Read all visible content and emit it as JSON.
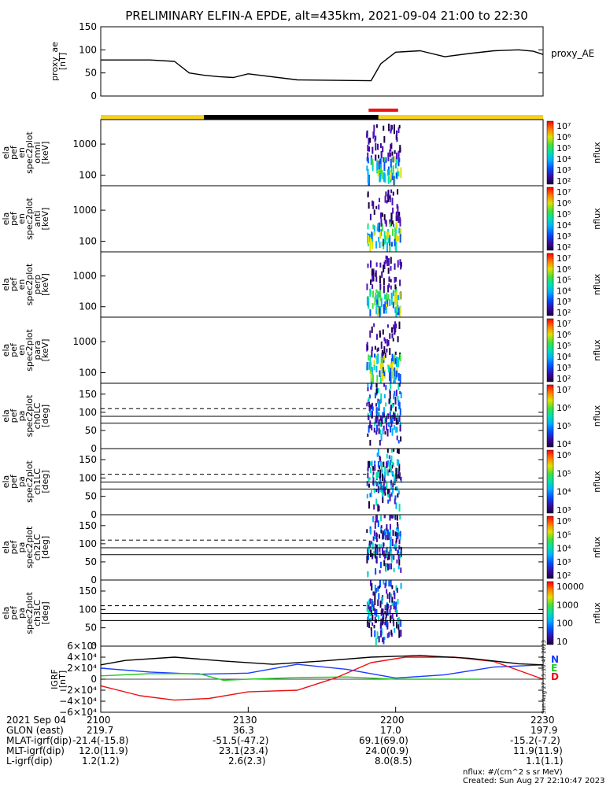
{
  "title": "PRELIMINARY ELFIN-A EPDE, alt=435km, 2021-09-04 21:00 to 22:30",
  "chart_data": {
    "type": "line",
    "x_range": [
      "21:00",
      "22:30"
    ],
    "panels": [
      {
        "id": "proxy_ae",
        "ylabel": [
          "proxy_ae",
          "[nT]"
        ],
        "yticks": [
          "150",
          "100",
          "50",
          "0"
        ],
        "ylim": [
          0,
          150
        ],
        "legend": "proxy_AE",
        "series": [
          {
            "name": "proxy_AE",
            "x": [
              0,
              10,
              15,
              18,
              21,
              24,
              27,
              30,
              40,
              55,
              57,
              60,
              65,
              70,
              75,
              80,
              85,
              88,
              90
            ],
            "y": [
              78,
              78,
              75,
              50,
              45,
              42,
              40,
              48,
              35,
              33,
              70,
              95,
              98,
              85,
              92,
              98,
              100,
              97,
              90
            ]
          }
        ]
      },
      {
        "id": "spec_omni",
        "type": "heatmap",
        "ylabel": [
          "ela",
          "pef",
          "en",
          "spec2plot",
          "omni",
          "[keV]"
        ],
        "yticks": [
          "1000",
          "100"
        ],
        "yscale": "log",
        "colorbar_label": "nflux",
        "colorbar_ticks": [
          "10⁷",
          "10⁶",
          "10⁵",
          "10⁴",
          "10³",
          "10²"
        ]
      },
      {
        "id": "spec_anti",
        "type": "heatmap",
        "ylabel": [
          "ela",
          "pef",
          "en",
          "spec2plot",
          "anti",
          "[keV]"
        ],
        "yticks": [
          "1000",
          "100"
        ],
        "yscale": "log",
        "colorbar_label": "nflux",
        "colorbar_ticks": [
          "10⁷",
          "10⁶",
          "10⁵",
          "10⁴",
          "10³",
          "10²"
        ]
      },
      {
        "id": "spec_perp",
        "type": "heatmap",
        "ylabel": [
          "ela",
          "pef",
          "en",
          "spec2plot",
          "perp",
          "[keV]"
        ],
        "yticks": [
          "1000",
          "100"
        ],
        "yscale": "log",
        "colorbar_label": "nflux",
        "colorbar_ticks": [
          "10⁷",
          "10⁶",
          "10⁵",
          "10⁴",
          "10³",
          "10²"
        ]
      },
      {
        "id": "spec_para",
        "type": "heatmap",
        "ylabel": [
          "ela",
          "pef",
          "en",
          "spec2plot",
          "para",
          "[keV]"
        ],
        "yticks": [
          "1000",
          "100"
        ],
        "yscale": "log",
        "colorbar_label": "nflux",
        "colorbar_ticks": [
          "10⁷",
          "10⁶",
          "10⁵",
          "10⁴",
          "10³",
          "10²"
        ]
      },
      {
        "id": "pa_ch0",
        "type": "heatmap",
        "ylabel": [
          "ela",
          "pef",
          "pa",
          "spec2plot",
          "ch0LC",
          "[deg]"
        ],
        "yticks": [
          "150",
          "100",
          "50",
          "0"
        ],
        "ylim": [
          0,
          180
        ],
        "colorbar_label": "nflux",
        "colorbar_ticks": [
          "10⁷",
          "10⁶",
          "10⁵",
          "10⁴"
        ]
      },
      {
        "id": "pa_ch1",
        "type": "heatmap",
        "ylabel": [
          "ela",
          "pef",
          "pa",
          "spec2plot",
          "ch1LC",
          "[deg]"
        ],
        "yticks": [
          "150",
          "100",
          "50",
          "0"
        ],
        "ylim": [
          0,
          180
        ],
        "colorbar_label": "nflux",
        "colorbar_ticks": [
          "10⁶",
          "10⁵",
          "10⁴",
          "10³"
        ]
      },
      {
        "id": "pa_ch2",
        "type": "heatmap",
        "ylabel": [
          "ela",
          "pef",
          "pa",
          "spec2plot",
          "ch2LC",
          "[deg]"
        ],
        "yticks": [
          "150",
          "100",
          "50",
          "0"
        ],
        "ylim": [
          0,
          180
        ],
        "colorbar_label": "nflux",
        "colorbar_ticks": [
          "10⁶",
          "10⁵",
          "10⁴",
          "10³",
          "10²"
        ]
      },
      {
        "id": "pa_ch3",
        "type": "heatmap",
        "ylabel": [
          "ela",
          "pef",
          "pa",
          "spec2plot",
          "ch3LC",
          "[deg]"
        ],
        "yticks": [
          "150",
          "100",
          "50",
          "0"
        ],
        "ylim": [
          0,
          180
        ],
        "colorbar_label": "nflux",
        "colorbar_ticks": [
          "10000",
          "1000",
          "100",
          "10"
        ]
      },
      {
        "id": "igrf",
        "ylabel": [
          "IGRF",
          "[nT]"
        ],
        "yticks": [
          "6×10⁴",
          "4×10⁴",
          "2×10⁴",
          "0",
          "−2×10⁴",
          "−4×10⁴",
          "−6×10⁴"
        ],
        "ylim": [
          -60000,
          60000
        ],
        "legend": [
          "N",
          "E",
          "D"
        ],
        "series": [
          {
            "name": "N",
            "x": [
              0,
              10,
              20,
              30,
              40,
              50,
              60,
              70,
              80,
              90
            ],
            "y": [
              20000,
              13000,
              9000,
              11000,
              27000,
              18000,
              2000,
              8000,
              22000,
              26000
            ]
          },
          {
            "name": "E",
            "x": [
              0,
              10,
              20,
              25,
              30,
              40,
              50,
              60,
              70,
              77
            ],
            "y": [
              6000,
              10000,
              10000,
              -2000,
              0,
              3000,
              4000,
              0,
              0,
              0
            ]
          },
          {
            "name": "D",
            "x": [
              0,
              8,
              15,
              22,
              30,
              40,
              48,
              55,
              62,
              72,
              80,
              90
            ],
            "y": [
              -12000,
              -30000,
              -38000,
              -35000,
              -23000,
              -20000,
              3000,
              30000,
              40000,
              40000,
              32000,
              0
            ]
          },
          {
            "name": "total",
            "x": [
              0,
              5,
              15,
              25,
              35,
              45,
              55,
              65,
              75,
              85,
              90
            ],
            "y": [
              26000,
              34000,
              40000,
              33000,
              27000,
              33000,
              40000,
              43000,
              38000,
              28000,
              26000
            ]
          }
        ]
      }
    ],
    "dashed_lines_deg": [
      110
    ],
    "solid_lines_deg": [
      89,
      70
    ],
    "orbit_bar": [
      {
        "from": 0,
        "to": 21,
        "color": "#f5d21c"
      },
      {
        "from": 21,
        "to": 56.5,
        "color": "#000000"
      },
      {
        "from": 56.5,
        "to": 90,
        "color": "#f5d21c"
      }
    ],
    "red_bar": [
      54.5,
      60.5
    ],
    "event_x": [
      54,
      61
    ]
  },
  "footer": {
    "row_labels": [
      "2021 Sep 04",
      "GLON (east)",
      "MLAT-igrf(dip)",
      "MLT-igrf(dip)",
      "L-igrf(dip)"
    ],
    "columns": [
      {
        "time": "2100",
        "glon": "219.7",
        "mlat": "-21.4(-15.8)",
        "mlt": "12.0(11.9)",
        "l": "1.2(1.2)"
      },
      {
        "time": "2130",
        "glon": "36.3",
        "mlat": "-51.5(-47.2)",
        "mlt": "23.1(23.4)",
        "l": "2.6(2.3)"
      },
      {
        "time": "2200",
        "glon": "17.0",
        "mlat": "69.1(69.0)",
        "mlt": "24.0(0.9)",
        "l": "8.0(8.5)"
      },
      {
        "time": "2230",
        "glon": "197.9",
        "mlat": "-15.2(-7.2)",
        "mlt": "11.9(11.9)",
        "l": "1.1(1.1)"
      }
    ],
    "units_note": "nflux: #/(cm^2 s sr MeV)",
    "created": "Created: Sun Aug 27 22:10:47 2023",
    "side_stamp": "Sun Aug 27 15:10:47 2023"
  },
  "colors": {
    "proxy": "#000000",
    "N": "#1a3cff",
    "E": "#22cc22",
    "D": "#ee1111",
    "total": "#000000",
    "orbit_yellow": "#f5d21c",
    "red_bar": "#ee1111"
  }
}
